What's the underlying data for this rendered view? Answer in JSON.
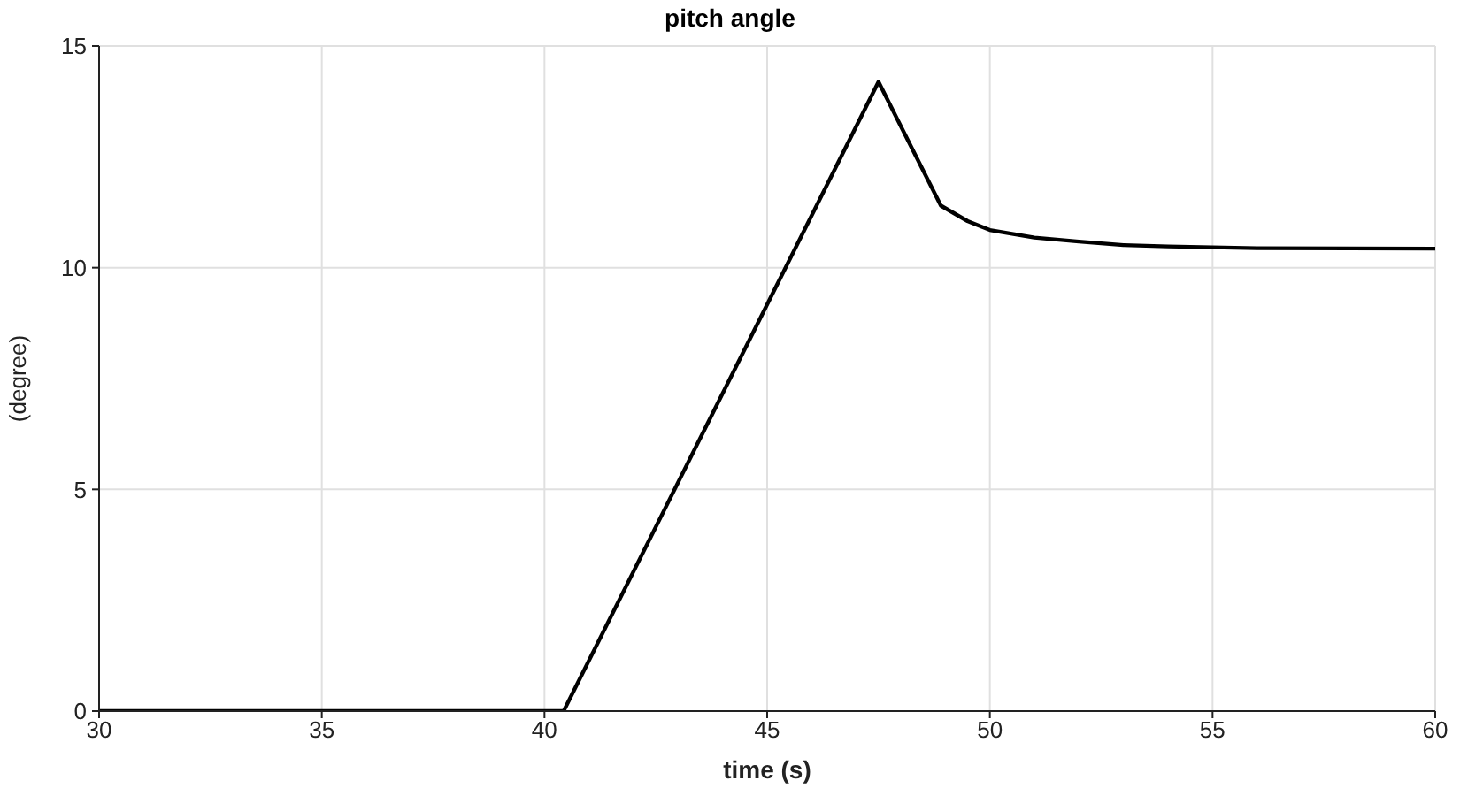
{
  "chart_data": {
    "type": "line",
    "title": "pitch angle",
    "xlabel": "time (s)",
    "ylabel": "(degree)",
    "x": [
      30,
      40.43,
      47.5,
      48.9,
      49.5,
      50,
      51,
      52,
      53,
      54,
      56,
      60
    ],
    "series": [
      {
        "color": "#000000",
        "values": [
          0,
          0,
          14.19,
          11.4,
          11.05,
          10.85,
          10.68,
          10.59,
          10.51,
          10.48,
          10.44,
          10.43
        ]
      }
    ],
    "xlim": [
      30,
      60
    ],
    "xticks": [
      30,
      35,
      40,
      45,
      50,
      55,
      60
    ],
    "ylim": [
      0,
      15
    ],
    "yticks": [
      0,
      5,
      10,
      15
    ],
    "grid": true,
    "marker": "none",
    "line_style": "solid"
  }
}
